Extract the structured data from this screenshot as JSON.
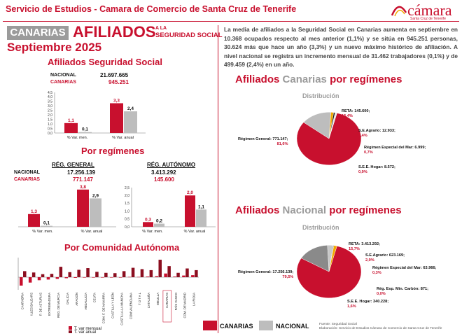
{
  "header": {
    "title": "Servicio de Estudios - Camara de Comercio de Santa Cruz de Tenerife",
    "logo_main": "cámara",
    "logo_sub": "Santa Cruz de Tenerife"
  },
  "banner": {
    "canarias": "CANARIAS",
    "afiliados": "AFILIADOS",
    "sub1": "A LA",
    "sub2": "SEGURIDAD SOCIAL",
    "month": "Septiembre 2025"
  },
  "paragraph": "La media de afiliados a la Seguridad Social en Canarias aumenta en septiembre en 10.368 ocupados respecto al mes anterior (1,1%) y se sitúa en 945.251 personas, 30.624 más que hace un año (3,3%) y un nuevo máximo histórico de afiliación. A nivel nacional se registra un incremento mensual de 31.462 trabajadores (0,1%) y de 499.459 (2,4%) en un año.",
  "afiliados_ss": {
    "title": "Afiliados Seguridad Social",
    "nacional_label": "NACIONAL",
    "nacional_value": "21.697.665",
    "canarias_label": "CANARIAS",
    "canarias_value": "945.251"
  },
  "regimenes": {
    "title": "Por regímenes",
    "general": {
      "title": "RÉG. GENERAL",
      "nacional": "17.256.139",
      "canarias": "771.147"
    },
    "autonomo": {
      "title": "RÉG. AUTÓNOMO",
      "nacional": "3.413.292",
      "canarias": "145.600"
    },
    "nacional_label": "NACIONAL",
    "canarias_label": "CANARIAS"
  },
  "comunidad": {
    "title": "Por Comunidad Autónoma",
    "legend_mensual": "T. var mensual",
    "legend_anual": "T. var anual"
  },
  "canarias_reg": {
    "title_a": "Afiliados",
    "title_b": "Canarias",
    "title_c": "por regímenes",
    "dist": "Distribución"
  },
  "nacional_reg": {
    "title_a": "Afiliados",
    "title_b": "Nacional",
    "title_c": "por regímenes",
    "dist": "Distribución"
  },
  "legend": {
    "canarias": "CANARIAS",
    "nacional": "NACIONAL"
  },
  "footnote": {
    "line1": "Fuente: Seguridad Social",
    "line2": "Elaboración: Servicio de Estudios Cámara de Comercio de Santa Cruz de Tenerife"
  },
  "colors": {
    "canarias": "#c8102e",
    "nacional": "#bdbdbd",
    "dark_red": "#8b0e1f"
  },
  "chart_data": [
    {
      "type": "bar",
      "name": "total",
      "categories": [
        "% Var. men.",
        "% Var. anual"
      ],
      "series": [
        {
          "name": "CANARIAS",
          "values": [
            1.1,
            3.3
          ]
        },
        {
          "name": "NACIONAL",
          "values": [
            0.1,
            2.4
          ]
        }
      ],
      "data_labels": [
        [
          "1,1",
          "3,3"
        ],
        [
          "0,1",
          "2,4"
        ]
      ],
      "ylim": [
        0,
        4.5
      ],
      "yticks": [
        0,
        0.5,
        1,
        1.5,
        2,
        2.5,
        3,
        3.5,
        4,
        4.5
      ],
      "ytick_labels": [
        "0,0",
        "0,5",
        "1,0",
        "1,5",
        "2,0",
        "2,5",
        "3,0",
        "3,5",
        "4,0",
        "4,5"
      ]
    },
    {
      "type": "bar",
      "name": "general",
      "categories": [
        "% Var. men.",
        "% Var. anual"
      ],
      "series": [
        {
          "name": "CANARIAS",
          "values": [
            1.3,
            3.8
          ]
        },
        {
          "name": "NACIONAL",
          "values": [
            0.1,
            2.9
          ]
        }
      ],
      "data_labels": [
        [
          "1,3",
          "3,8"
        ],
        [
          "0,1",
          "2,9"
        ]
      ],
      "ylim": [
        0,
        4
      ]
    },
    {
      "type": "bar",
      "name": "autonomo",
      "categories": [
        "% Var. men.",
        "% Var. anual"
      ],
      "series": [
        {
          "name": "CANARIAS",
          "values": [
            0.3,
            2.0
          ]
        },
        {
          "name": "NACIONAL",
          "values": [
            0.2,
            1.1
          ]
        }
      ],
      "data_labels": [
        [
          "0,3",
          "2,0"
        ],
        [
          "0,2",
          "1,1"
        ]
      ],
      "ylim": [
        0,
        2.5
      ],
      "yticks": [
        0,
        0.5,
        1,
        1.5,
        2,
        2.5
      ],
      "ytick_labels": [
        "0,0",
        "0,5",
        "1,0",
        "1,5",
        "2,0",
        "2,5"
      ]
    },
    {
      "type": "bar",
      "name": "comunidades",
      "categories": [
        "CANTABRIA",
        "ILLES BALEARS",
        "P. DE ASTURIAS",
        "EXTREMADURA",
        "REG. DE MURCIA",
        "GALICIA",
        "ARAGÓN",
        "ANDALUCÍA",
        "CEUTA",
        "COM. F. DE NAVARRA",
        "CASTILLA Y LEÓN",
        "CASTILLA-LA MANCHA",
        "COM.VALENCIANA",
        "T O T A L",
        "CATALUÑA",
        "MELILLA",
        "CANARIAS",
        "PAÍS VASCO",
        "COM. DE MADRID",
        "LA RIOJA"
      ],
      "series": [
        {
          "name": "T. var mensual",
          "values": [
            -2.5,
            -1.6,
            -0.9,
            -0.7,
            -0.5,
            -0.3,
            -0.2,
            -0.1,
            0.0,
            0.0,
            0.0,
            0.0,
            0.1,
            0.1,
            0.2,
            0.3,
            1.1,
            0.2,
            0.5,
            0.6
          ]
        },
        {
          "name": "T. var anual",
          "values": [
            1.8,
            1.4,
            0.9,
            1.0,
            3.1,
            1.5,
            2.2,
            2.7,
            1.6,
            1.3,
            1.2,
            1.8,
            2.8,
            2.4,
            2.1,
            5.2,
            3.3,
            1.3,
            2.6,
            2.1
          ]
        }
      ],
      "ylim": [
        -3,
        6
      ],
      "legend": "bottom"
    },
    {
      "type": "pie",
      "name": "canarias_regimenes",
      "labels": [
        "Régimen General",
        "RETA",
        "S.E.Agrario",
        "Régimen Especial del Mar",
        "S.E.E. Hogar"
      ],
      "values": [
        771147,
        145600,
        12933,
        6999,
        8572
      ],
      "value_labels": [
        "771.147",
        "145.600",
        "12.933",
        "6.999",
        "8.572"
      ],
      "percent_labels": [
        "81,6%",
        "15,4%",
        "1,4%",
        "0,7%",
        "0,9%"
      ],
      "colors": [
        "#c8102e",
        "#bdbdbd",
        "#f2a900",
        "#1a1a1a",
        "#e8e8e8"
      ]
    },
    {
      "type": "pie",
      "name": "nacional_regimenes",
      "labels": [
        "Régimen General",
        "RETA",
        "S.E.Agrario",
        "Régimen Especial del Mar",
        "Rég. Esp. Min. Carbón",
        "S.E.E. Hogar"
      ],
      "values": [
        17256139,
        3413292,
        623169,
        63966,
        871,
        340228
      ],
      "value_labels": [
        "17.256.139",
        "3.413.292",
        "623.169",
        "63.966",
        "871",
        "340.228"
      ],
      "percent_labels": [
        "79,5%",
        "15,7%",
        "2,9%",
        "0,3%",
        "0,0%",
        "1,6%"
      ],
      "colors": [
        "#c8102e",
        "#8a8a8a",
        "#c7c7c7",
        "#1a1a1a",
        "#f7e08a",
        "#f2a900"
      ]
    }
  ]
}
